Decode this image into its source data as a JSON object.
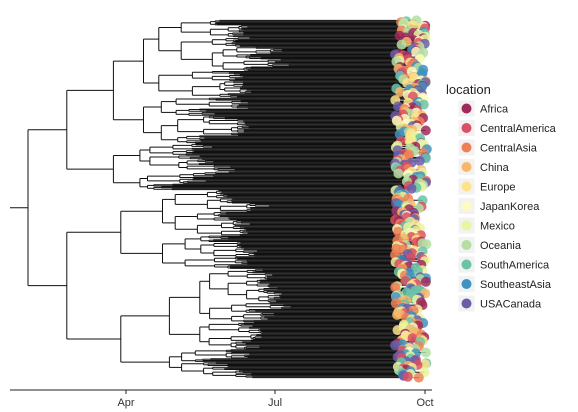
{
  "chart_data": {
    "type": "phylogenetic-tree",
    "x_axis": {
      "ticks": [
        "Apr",
        "Jul",
        "Oct"
      ]
    },
    "legend": {
      "title": "location",
      "placement": "right",
      "entries": [
        {
          "label": "Africa",
          "color": "#9e2a5a"
        },
        {
          "label": "CentralAmerica",
          "color": "#d95062"
        },
        {
          "label": "CentralAsia",
          "color": "#ef8056"
        },
        {
          "label": "China",
          "color": "#f7b76b"
        },
        {
          "label": "Europe",
          "color": "#fde38c"
        },
        {
          "label": "JapanKorea",
          "color": "#fdfbbf"
        },
        {
          "label": "Mexico",
          "color": "#e9f59f"
        },
        {
          "label": "Oceania",
          "color": "#b4dea3"
        },
        {
          "label": "SouthAmerica",
          "color": "#6cc3a8"
        },
        {
          "label": "SoutheastAsia",
          "color": "#3f93c1"
        },
        {
          "label": "USACanada",
          "color": "#6b5ea8"
        }
      ]
    },
    "grid": false
  }
}
